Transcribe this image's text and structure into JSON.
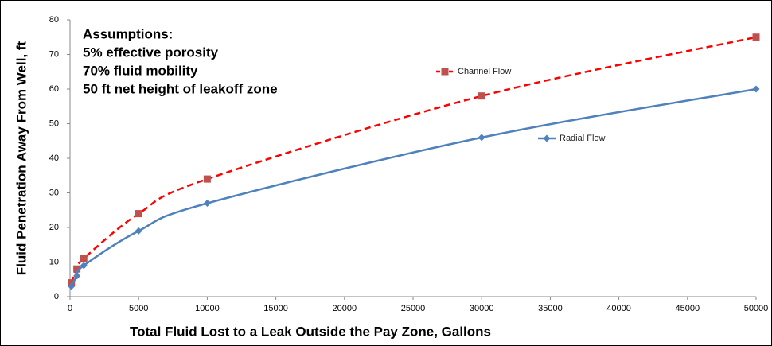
{
  "chart_data": {
    "type": "line",
    "ylabel": "Fluid Penetration Away From Well, ft",
    "xlabel": "Total Fluid Lost to a Leak Outside the Pay Zone, Gallons",
    "annotations": [
      "Assumptions:",
      "5% effective porosity",
      "70% fluid mobility",
      "50 ft net height of leakoff zone"
    ],
    "x": [
      100,
      500,
      1000,
      5000,
      10000,
      30000,
      50000
    ],
    "series": [
      {
        "name": "Channel Flow",
        "color": "#ff0000",
        "marker_color": "#c0504d",
        "marker": "square",
        "dashed": true,
        "values": [
          4,
          8,
          11,
          24,
          34,
          58,
          75
        ]
      },
      {
        "name": "Radial Flow",
        "color": "#4f81bd",
        "marker_color": "#4f81bd",
        "marker": "diamond",
        "dashed": false,
        "values": [
          3,
          6,
          9,
          19,
          27,
          46,
          60
        ]
      }
    ],
    "xlim": [
      0,
      50000
    ],
    "xticks": [
      0,
      5000,
      10000,
      15000,
      20000,
      25000,
      30000,
      35000,
      40000,
      45000,
      50000
    ],
    "ylim": [
      0,
      80
    ],
    "yticks": [
      0,
      10,
      20,
      30,
      40,
      50,
      60,
      70,
      80
    ],
    "grid": false
  }
}
